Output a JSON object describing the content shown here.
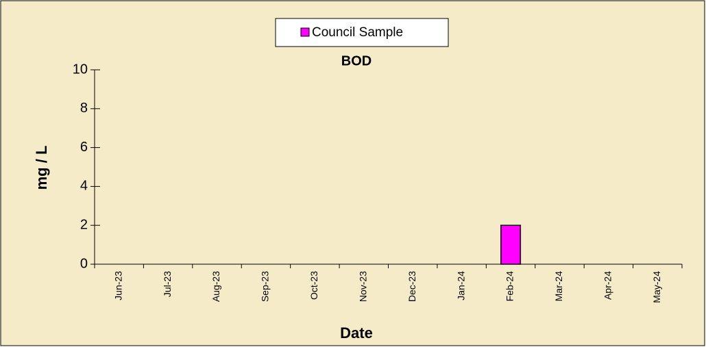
{
  "chart_data": {
    "type": "bar",
    "title": "BOD",
    "x_label": "Date",
    "y_label": "mg / L",
    "categories": [
      "Jun-23",
      "Jul-23",
      "Aug-23",
      "Sep-23",
      "Oct-23",
      "Nov-23",
      "Dec-23",
      "Jan-24",
      "Feb-24",
      "Mar-24",
      "Apr-24",
      "May-24"
    ],
    "series": [
      {
        "name": "Council Sample",
        "color": "#ff00ff",
        "values": [
          null,
          null,
          null,
          null,
          null,
          null,
          null,
          null,
          2,
          null,
          null,
          null
        ]
      }
    ],
    "ylim": [
      0,
      10
    ],
    "yticks": [
      0,
      2,
      4,
      6,
      8,
      10
    ],
    "grid": false,
    "legend": "top"
  }
}
